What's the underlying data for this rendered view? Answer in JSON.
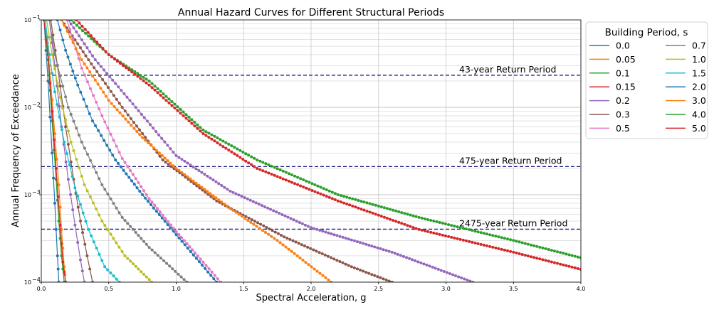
{
  "chart_data": {
    "type": "line",
    "title": "Annual Hazard Curves for Different Structural Periods",
    "xlabel": "Spectral Acceleration, g",
    "ylabel": "Annual Frequency of Exceedance",
    "xlim": [
      0.0,
      4.0
    ],
    "ylim": [
      0.0001,
      0.1
    ],
    "yscale": "log",
    "grid": true,
    "x_ticks": [
      "0.0",
      "0.5",
      "1.0",
      "1.5",
      "2.0",
      "2.5",
      "3.0",
      "3.5",
      "4.0"
    ],
    "y_ticks": [
      {
        "value": 0.0001,
        "base": "10",
        "exp": "−4"
      },
      {
        "value": 0.001,
        "base": "10",
        "exp": "−3"
      },
      {
        "value": 0.01,
        "base": "10",
        "exp": "−2"
      },
      {
        "value": 0.1,
        "base": "10",
        "exp": "−1"
      }
    ],
    "legend": {
      "title": "Building Period, s",
      "location": "upper right outside",
      "columns": 2
    },
    "reference_lines": [
      {
        "label": "43-year Return Period",
        "y": 0.0233,
        "color": "#1a1a80"
      },
      {
        "label": "475-year Return Period",
        "y": 0.0021,
        "color": "#1a1a80"
      },
      {
        "label": "2475-year Return Period",
        "y": 0.000404,
        "color": "#1a1a80"
      }
    ],
    "series": [
      {
        "name": "0.0",
        "color": "#1f77b4",
        "points": [
          [
            0.02,
            0.1
          ],
          [
            0.05,
            0.02
          ],
          [
            0.08,
            0.003
          ],
          [
            0.1,
            0.0008
          ],
          [
            0.12,
            0.0002
          ],
          [
            0.13,
            0.0001
          ]
        ]
      },
      {
        "name": "0.05",
        "color": "#ff7f0e",
        "points": [
          [
            0.03,
            0.1
          ],
          [
            0.06,
            0.03
          ],
          [
            0.1,
            0.005
          ],
          [
            0.13,
            0.0013
          ],
          [
            0.15,
            0.0004
          ],
          [
            0.17,
            0.00015
          ],
          [
            0.18,
            0.0001
          ]
        ]
      },
      {
        "name": "0.1",
        "color": "#2ca02c",
        "points": [
          [
            0.02,
            0.1
          ],
          [
            0.05,
            0.035
          ],
          [
            0.08,
            0.007
          ],
          [
            0.11,
            0.0015
          ],
          [
            0.13,
            0.0005
          ],
          [
            0.15,
            0.0002
          ],
          [
            0.17,
            0.0001
          ]
        ]
      },
      {
        "name": "0.15",
        "color": "#d62728",
        "points": [
          [
            0.02,
            0.1
          ],
          [
            0.05,
            0.04
          ],
          [
            0.08,
            0.009
          ],
          [
            0.11,
            0.002
          ],
          [
            0.14,
            0.00045
          ],
          [
            0.16,
            0.00017
          ],
          [
            0.18,
            0.0001
          ]
        ]
      },
      {
        "name": "0.2",
        "color": "#9467bd",
        "points": [
          [
            0.06,
            0.1
          ],
          [
            0.1,
            0.03
          ],
          [
            0.15,
            0.006
          ],
          [
            0.2,
            0.0015
          ],
          [
            0.25,
            0.00045
          ],
          [
            0.29,
            0.00018
          ],
          [
            0.32,
            0.0001
          ]
        ]
      },
      {
        "name": "0.3",
        "color": "#8c564b",
        "points": [
          [
            0.07,
            0.1
          ],
          [
            0.12,
            0.03
          ],
          [
            0.18,
            0.006
          ],
          [
            0.24,
            0.0015
          ],
          [
            0.29,
            0.0005
          ],
          [
            0.34,
            0.0002
          ],
          [
            0.38,
            0.0001
          ]
        ]
      },
      {
        "name": "0.5",
        "color": "#e377c2",
        "points": [
          [
            0.19,
            0.1
          ],
          [
            0.3,
            0.028
          ],
          [
            0.45,
            0.008
          ],
          [
            0.6,
            0.0026
          ],
          [
            0.8,
            0.0009
          ],
          [
            1.0,
            0.00038
          ],
          [
            1.2,
            0.00017
          ],
          [
            1.33,
            0.0001
          ]
        ]
      },
      {
        "name": "0.7",
        "color": "#7f7f7f",
        "points": [
          [
            0.06,
            0.1
          ],
          [
            0.1,
            0.04
          ],
          [
            0.2,
            0.01
          ],
          [
            0.3,
            0.004
          ],
          [
            0.45,
            0.0013
          ],
          [
            0.6,
            0.00055
          ],
          [
            0.8,
            0.00025
          ],
          [
            1.08,
            0.0001
          ]
        ]
      },
      {
        "name": "1.0",
        "color": "#bcbd22",
        "points": [
          [
            0.04,
            0.1
          ],
          [
            0.08,
            0.04
          ],
          [
            0.14,
            0.013
          ],
          [
            0.22,
            0.004
          ],
          [
            0.32,
            0.0013
          ],
          [
            0.45,
            0.0005
          ],
          [
            0.62,
            0.0002
          ],
          [
            0.82,
            0.0001
          ]
        ]
      },
      {
        "name": "1.5",
        "color": "#17becf",
        "points": [
          [
            0.03,
            0.1
          ],
          [
            0.06,
            0.04
          ],
          [
            0.1,
            0.015
          ],
          [
            0.17,
            0.004
          ],
          [
            0.25,
            0.0012
          ],
          [
            0.35,
            0.0004
          ],
          [
            0.47,
            0.00015
          ],
          [
            0.58,
            0.0001
          ]
        ]
      },
      {
        "name": "2.0",
        "color": "#1f77b4",
        "points": [
          [
            0.12,
            0.1
          ],
          [
            0.18,
            0.045
          ],
          [
            0.27,
            0.018
          ],
          [
            0.38,
            0.007
          ],
          [
            0.55,
            0.0025
          ],
          [
            0.75,
            0.001
          ],
          [
            1.0,
            0.00035
          ],
          [
            1.3,
            0.0001
          ]
        ]
      },
      {
        "name": "3.0",
        "color": "#ff7f0e",
        "points": [
          [
            0.15,
            0.1
          ],
          [
            0.3,
            0.035
          ],
          [
            0.5,
            0.012
          ],
          [
            0.75,
            0.0045
          ],
          [
            1.0,
            0.002
          ],
          [
            1.4,
            0.0007
          ],
          [
            1.75,
            0.0003
          ],
          [
            2.15,
            0.0001
          ]
        ]
      },
      {
        "name": "4.0",
        "color": "#2ca02c",
        "points": [
          [
            0.22,
            0.1
          ],
          [
            0.5,
            0.04
          ],
          [
            0.8,
            0.02
          ],
          [
            1.2,
            0.0055
          ],
          [
            1.6,
            0.0025
          ],
          [
            2.2,
            0.001
          ],
          [
            2.8,
            0.00055
          ],
          [
            3.5,
            0.0003
          ],
          [
            4.0,
            0.00019
          ]
        ]
      },
      {
        "name": "5.0",
        "color": "#d62728",
        "points": [
          [
            0.26,
            0.1
          ],
          [
            0.5,
            0.04
          ],
          [
            0.8,
            0.018
          ],
          [
            1.2,
            0.005
          ],
          [
            1.6,
            0.002
          ],
          [
            2.2,
            0.00085
          ],
          [
            2.8,
            0.0004
          ],
          [
            3.5,
            0.00022
          ],
          [
            4.0,
            0.00014
          ]
        ]
      }
    ],
    "unlabeled_series": [
      {
        "color": "#9467bd",
        "points": [
          [
            0.2,
            0.1
          ],
          [
            0.4,
            0.035
          ],
          [
            0.7,
            0.01
          ],
          [
            1.0,
            0.0028
          ],
          [
            1.4,
            0.0011
          ],
          [
            2.0,
            0.00042
          ],
          [
            2.6,
            0.00022
          ],
          [
            3.2,
            0.0001
          ]
        ]
      },
      {
        "color": "#8c564b",
        "points": [
          [
            0.15,
            0.1
          ],
          [
            0.35,
            0.035
          ],
          [
            0.6,
            0.01
          ],
          [
            0.9,
            0.0025
          ],
          [
            1.3,
            0.00085
          ],
          [
            1.8,
            0.00033
          ],
          [
            2.3,
            0.00015
          ],
          [
            2.6,
            0.0001
          ]
        ]
      }
    ]
  }
}
